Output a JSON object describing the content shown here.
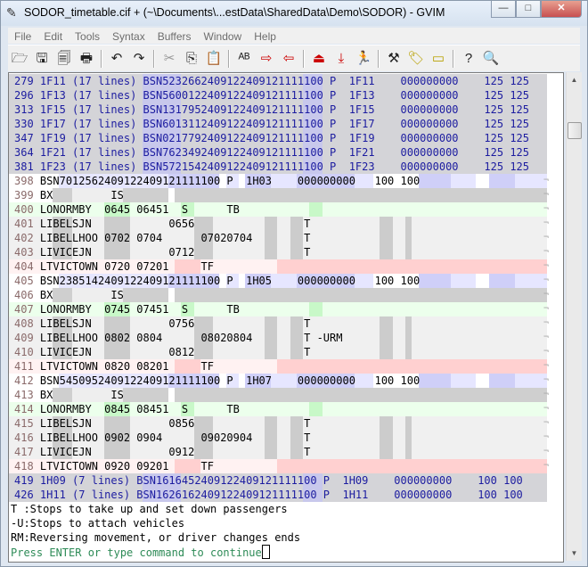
{
  "window": {
    "title": "SODOR_timetable.cif + (~\\Documents\\...estData\\SharedData\\Demo\\SODOR) - GVIM",
    "app_icon": "gvim-icon"
  },
  "window_buttons": {
    "minimize": "—",
    "maximize": "□",
    "close": "✕"
  },
  "menu": [
    "File",
    "Edit",
    "Tools",
    "Syntax",
    "Buffers",
    "Window",
    "Help"
  ],
  "toolbar": [
    {
      "icon": "open-icon",
      "glyph": "🗁"
    },
    {
      "icon": "save-icon",
      "glyph": "🖫"
    },
    {
      "icon": "save-all-icon",
      "glyph": "🗐"
    },
    {
      "icon": "print-icon",
      "glyph": "🖶"
    },
    {
      "sep": true
    },
    {
      "icon": "undo-icon",
      "glyph": "↶"
    },
    {
      "icon": "redo-icon",
      "glyph": "↷"
    },
    {
      "sep": true
    },
    {
      "icon": "cut-icon",
      "glyph": "✂",
      "cls": "gray"
    },
    {
      "icon": "copy-icon",
      "glyph": "⎘"
    },
    {
      "icon": "paste-icon",
      "glyph": "📋"
    },
    {
      "sep": true
    },
    {
      "icon": "replace-icon",
      "glyph": "ᴬᴮ"
    },
    {
      "icon": "find-next-icon",
      "glyph": "⇨",
      "cls": "red"
    },
    {
      "icon": "find-prev-icon",
      "glyph": "⇦",
      "cls": "red"
    },
    {
      "sep": true
    },
    {
      "icon": "load-session-icon",
      "glyph": "⏏",
      "cls": "red"
    },
    {
      "icon": "save-session-icon",
      "glyph": "⤓",
      "cls": "red"
    },
    {
      "icon": "run-script-icon",
      "glyph": "🏃"
    },
    {
      "sep": true
    },
    {
      "icon": "make-icon",
      "glyph": "⚒"
    },
    {
      "icon": "build-tags-icon",
      "glyph": "🏷",
      "cls": "yellow"
    },
    {
      "icon": "jump-tag-icon",
      "glyph": "▭",
      "cls": "yellow"
    },
    {
      "sep": true
    },
    {
      "icon": "help-icon",
      "glyph": "?"
    },
    {
      "icon": "find-help-icon",
      "glyph": "🔍"
    }
  ],
  "lines": [
    {
      "type": "fold",
      "num": "279",
      "text": "1F11 (17 lines) BSN5232662409122409121111100 P  1F11    000000000    125 125"
    },
    {
      "type": "fold",
      "num": "296",
      "text": "1F13 (17 lines) BSN5600122409122409121111100 P  1F13    000000000    125 125"
    },
    {
      "type": "fold",
      "num": "313",
      "text": "1F15 (17 lines) BSN1317952409122409121111100 P  1F15    000000000    125 125"
    },
    {
      "type": "fold",
      "num": "330",
      "text": "1F17 (17 lines) BSN6013112409122409121111100 P  1F17    000000000    125 125"
    },
    {
      "type": "fold",
      "num": "347",
      "text": "1F19 (17 lines) BSN0217792409122409121111100 P  1F19    000000000    125 125"
    },
    {
      "type": "fold",
      "num": "364",
      "text": "1F21 (17 lines) BSN7623492409122409121111100 P  1F21    000000000    125 125"
    },
    {
      "type": "fold",
      "num": "381",
      "text": "1F23 (17 lines) BSN5721542409122409121111100 P  1F23    000000000    125 125"
    },
    {
      "type": "BS",
      "num": "398",
      "text": "BSN7012562409122409121111100 P  1H03    000000000   100 100"
    },
    {
      "type": "BX",
      "num": "399",
      "text": "BX         IS"
    },
    {
      "type": "LO",
      "num": "400",
      "text": "LONORMBY  0645 06451  S      TB"
    },
    {
      "type": "LI",
      "num": "401",
      "text": "LIBELSJN            0656                 T"
    },
    {
      "type": "LI",
      "num": "402",
      "text": "LIBELLHOO 0702 0704      07020704        T"
    },
    {
      "type": "LI",
      "num": "403",
      "text": "LIVICEJN            0712                 T"
    },
    {
      "type": "LT",
      "num": "404",
      "text": "LTVICTOWN 0720 07201     TF"
    },
    {
      "type": "BS",
      "num": "405",
      "text": "BSN2385142409122409121111100 P  1H05    000000000   100 100"
    },
    {
      "type": "BX",
      "num": "406",
      "text": "BX         IS"
    },
    {
      "type": "LO",
      "num": "407",
      "text": "LONORMBY  0745 07451  S      TB"
    },
    {
      "type": "LI",
      "num": "408",
      "text": "LIBELSJN            0756                 T"
    },
    {
      "type": "LI",
      "num": "409",
      "text": "LIBELLHOO 0802 0804      08020804        T -URM"
    },
    {
      "type": "LI",
      "num": "410",
      "text": "LIVICEJN            0812                 T"
    },
    {
      "type": "LT",
      "num": "411",
      "text": "LTVICTOWN 0820 08201     TF"
    },
    {
      "type": "BS",
      "num": "412",
      "text": "BSN5450952409122409121111100 P  1H07    000000000   100 100"
    },
    {
      "type": "BX",
      "num": "413",
      "text": "BX         IS"
    },
    {
      "type": "LO",
      "num": "414",
      "text": "LONORMBY  0845 08451  S      TB"
    },
    {
      "type": "LI",
      "num": "415",
      "text": "LIBELSJN            0856                 T"
    },
    {
      "type": "LI",
      "num": "416",
      "text": "LIBELLHOO 0902 0904      09020904        T"
    },
    {
      "type": "LI",
      "num": "417",
      "text": "LIVICEJN            0912                 T"
    },
    {
      "type": "LT",
      "num": "418",
      "text": "LTVICTOWN 0920 09201     TF"
    },
    {
      "type": "fold",
      "num": "419",
      "text": "1H09 (7 lines) BSN1616452409122409121111100 P  1H09    000000000    100 100"
    },
    {
      "type": "fold",
      "num": "426",
      "text": "1H11 (7 lines) BSN1626162409122409121111100 P  1H11    000000000    100 100"
    }
  ],
  "eol_marker": "¬",
  "messages": [
    "T :Stops to take up and set down passengers",
    "-U:Stops to attach vehicles",
    "RM:Reversing movement, or driver changes ends"
  ],
  "prompt": "Press ENTER or type command to continue",
  "scrollbar": {
    "up": "▲",
    "down": "▼"
  },
  "colors": {
    "fold_bg": "#d4d4d8",
    "fold_text": "#1c1ca0",
    "bs_band": "#c8c8f8",
    "lo_bg": "#ecffec",
    "li_bg": "#f0f0f0",
    "lt_band": "#ffd0d0",
    "prompt": "#2e8b57"
  }
}
